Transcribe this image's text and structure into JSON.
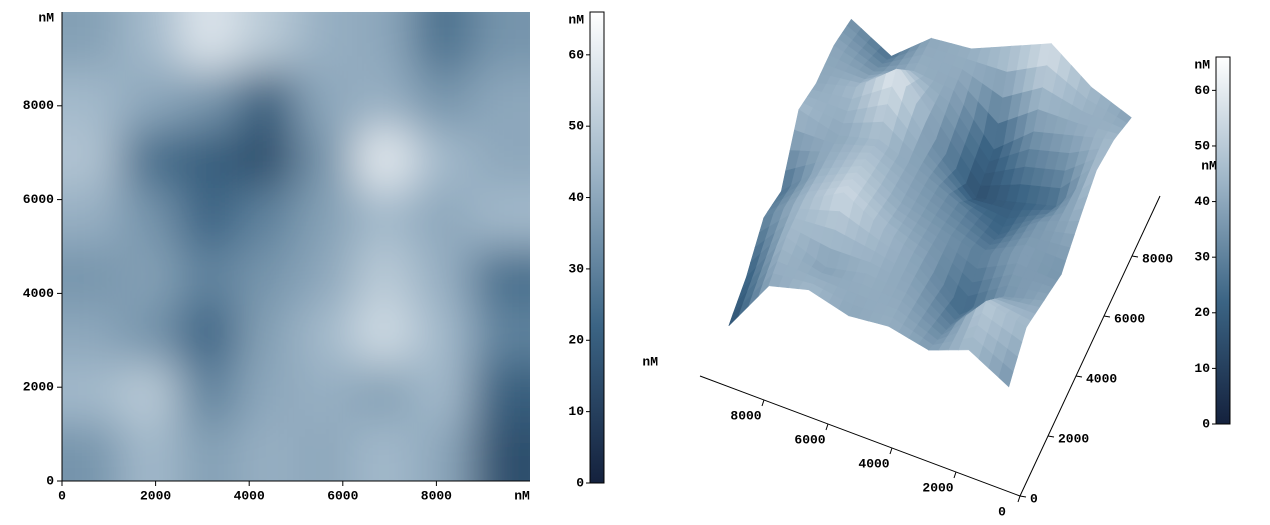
{
  "chart_data": [
    {
      "type": "heatmap",
      "x_label": "nM",
      "y_label": "nM",
      "colorbar_label": "nM",
      "xlim": [
        0,
        10000
      ],
      "ylim": [
        0,
        10000
      ],
      "xticks": [
        0,
        2000,
        4000,
        6000,
        8000
      ],
      "yticks": [
        0,
        2000,
        4000,
        6000,
        8000
      ],
      "zlim": [
        0,
        66
      ],
      "zticks": [
        0,
        10,
        20,
        30,
        40,
        50,
        60
      ],
      "colormap": [
        "#14213d",
        "#3b6484",
        "#9fb6c8",
        "#ffffff"
      ],
      "z": [
        [
          38,
          45,
          58,
          50,
          42,
          40,
          25,
          35
        ],
        [
          45,
          40,
          35,
          20,
          40,
          42,
          35,
          40
        ],
        [
          48,
          25,
          20,
          15,
          35,
          60,
          45,
          40
        ],
        [
          42,
          35,
          22,
          30,
          38,
          45,
          40,
          45
        ],
        [
          35,
          38,
          30,
          35,
          40,
          50,
          42,
          25
        ],
        [
          40,
          35,
          22,
          38,
          45,
          55,
          45,
          30
        ],
        [
          45,
          50,
          30,
          40,
          42,
          38,
          45,
          20
        ],
        [
          35,
          45,
          38,
          42,
          40,
          45,
          40,
          15
        ]
      ]
    },
    {
      "type": "surface",
      "x_label": "nM",
      "y_label": "nM",
      "colorbar_label": "nM",
      "xlim": [
        0,
        10000
      ],
      "ylim": [
        0,
        10000
      ],
      "xticks": [
        0,
        2000,
        4000,
        6000,
        8000
      ],
      "yticks": [
        0,
        2000,
        4000,
        6000,
        8000
      ],
      "zlim": [
        0,
        66
      ],
      "zticks": [
        0,
        10,
        20,
        30,
        40,
        50,
        60
      ],
      "colormap": [
        "#14213d",
        "#3b6484",
        "#9fb6c8",
        "#ffffff"
      ],
      "z": [
        [
          38,
          45,
          58,
          50,
          42,
          40,
          25,
          35
        ],
        [
          45,
          40,
          35,
          20,
          40,
          42,
          35,
          40
        ],
        [
          48,
          25,
          20,
          15,
          35,
          60,
          45,
          40
        ],
        [
          42,
          35,
          22,
          30,
          38,
          45,
          40,
          45
        ],
        [
          35,
          38,
          30,
          35,
          40,
          50,
          42,
          25
        ],
        [
          40,
          35,
          22,
          38,
          45,
          55,
          45,
          30
        ],
        [
          45,
          50,
          30,
          40,
          42,
          38,
          45,
          20
        ],
        [
          35,
          45,
          38,
          42,
          40,
          45,
          40,
          15
        ]
      ]
    }
  ]
}
